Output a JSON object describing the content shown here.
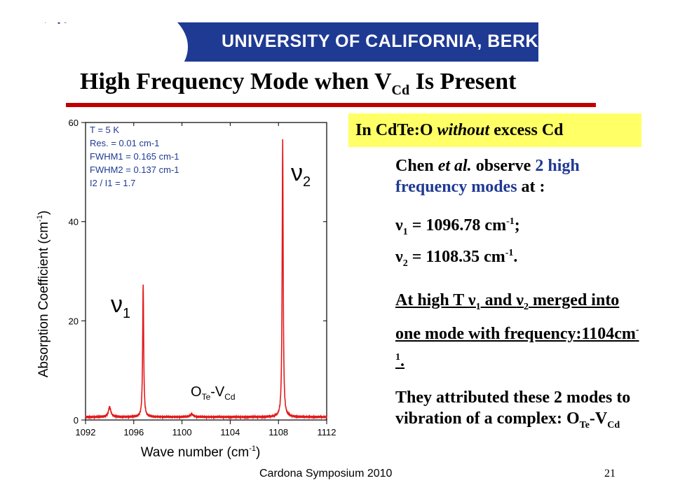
{
  "banner": {
    "seal_text": "RSITY OF CAL",
    "title": "UNIVERSITY OF CALIFORNIA, BERKELEY"
  },
  "slide": {
    "title_pre": "High Frequency Mode when V",
    "title_sub": "Cd",
    "title_post": " Is Present"
  },
  "callout": {
    "pre": "In CdTe:O ",
    "em": "without",
    "post": " excess Cd"
  },
  "text": {
    "p1_a": "Chen ",
    "p1_b": "et al.",
    "p1_c": " observe ",
    "p1_d": "2 high frequency modes",
    "p1_e": " at :",
    "nu": "ν",
    "l1_sub": "1",
    "l1_val": " = 1096.78 cm",
    "l2_sub": "2",
    "l2_val": " = 1108.35 cm",
    "exp": "-1",
    "l1_end": ";",
    "l2_end": ".",
    "hiT_a": "At high T ",
    "and": " and ",
    "hiT_b": "merged into one mode with frequency:1104cm",
    "hiT_end": ".",
    "attr": "They attributed these 2 modes to vibration of a complex: O",
    "attr_sub1": "Te",
    "attr_dash": "-V",
    "attr_sub2": "Cd"
  },
  "footer": {
    "event": "Cardona Symposium 2010",
    "page": "21"
  },
  "chart_data": {
    "type": "line",
    "x_label": "Wave number (cm",
    "x_label_exp": "-1",
    "x_label_end": ")",
    "y_label": "Absorption Coefficient (cm",
    "y_label_exp": "-1",
    "y_label_end": ")",
    "xlim": [
      1092,
      1112
    ],
    "ylim": [
      0,
      60
    ],
    "x_ticks": [
      1092,
      1096,
      1100,
      1104,
      1108,
      1112
    ],
    "y_ticks": [
      0,
      20,
      40,
      60
    ],
    "color": "#e31a1c",
    "peaks": [
      {
        "x": 1094.0,
        "height": 2.0,
        "width": 0.25
      },
      {
        "x": 1096.78,
        "height": 27.0,
        "width": 0.1
      },
      {
        "x": 1100.8,
        "height": 0.6,
        "width": 0.3
      },
      {
        "x": 1108.35,
        "height": 56.0,
        "width": 0.1
      }
    ],
    "baseline": 0.6,
    "legend_lines": [
      "T = 5 K",
      "Res. = 0.01 cm-1",
      "FWHM1 = 0.165 cm-1",
      "FWHM2 = 0.137 cm-1",
      "I2 / I1 = 1.7"
    ],
    "annotations": {
      "nu": "ν",
      "nu1_sub": "1",
      "nu2_sub": "2",
      "complex_o": "O",
      "complex_te": "Te",
      "complex_v": "-V",
      "complex_cd": "Cd"
    }
  }
}
